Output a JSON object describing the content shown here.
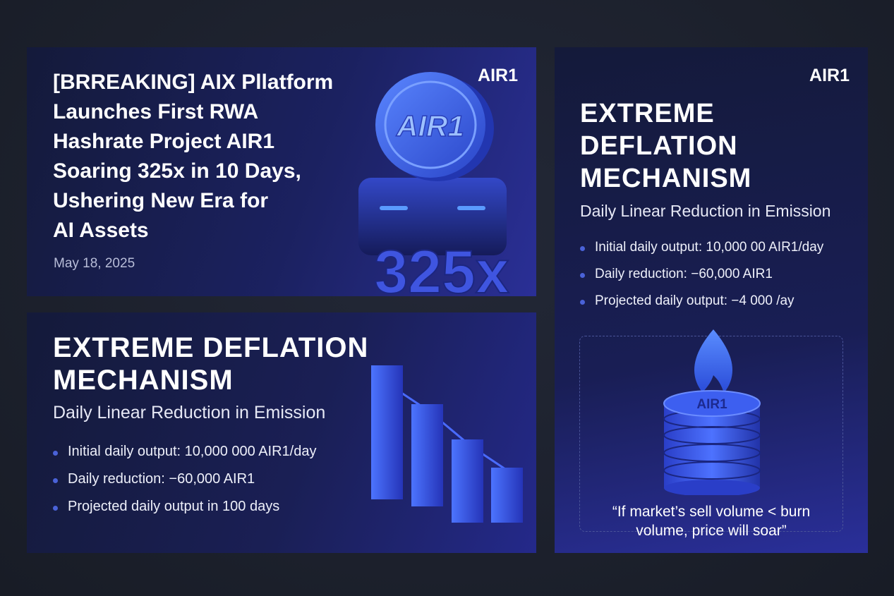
{
  "news_card": {
    "brand": "AIR1",
    "headline_lines": [
      "[BRREAKING] AIX Pllatform",
      "Launches First RWA",
      "Hashrate Project AIR1",
      "Soaring 325x in 10 Days,",
      "Ushering New Era for",
      "AI Assets"
    ],
    "date": "May 18, 2025",
    "coin_label": "AIR1",
    "multiplier": "325x"
  },
  "deflation_card": {
    "title_lines": [
      "EXTREME DEFLATION",
      "MECHANISM"
    ],
    "subtitle": "Daily Linear Reduction in Emission",
    "bullets": [
      "Initial daily output:  10,000 000 AIR1/day",
      "Daily reduction: −60,000 AIR1",
      "Projected daily output in 100 days"
    ]
  },
  "side_card": {
    "brand": "AIR1",
    "title_lines": [
      "EXTREME",
      "DEFLATION",
      "MECHANISM"
    ],
    "subtitle": "Daily Linear Reduction in Emission",
    "bullets": [
      "Initial daily output: 10,000 00 AIR1/day",
      "Daily reduction:  −60,000 AIR1",
      "Projected daily output: −4 000 /ay"
    ],
    "coin_label": "AIR1",
    "quote_lines": [
      "“If market’s sell volume < burn",
      "volume, price will soar”"
    ]
  }
}
